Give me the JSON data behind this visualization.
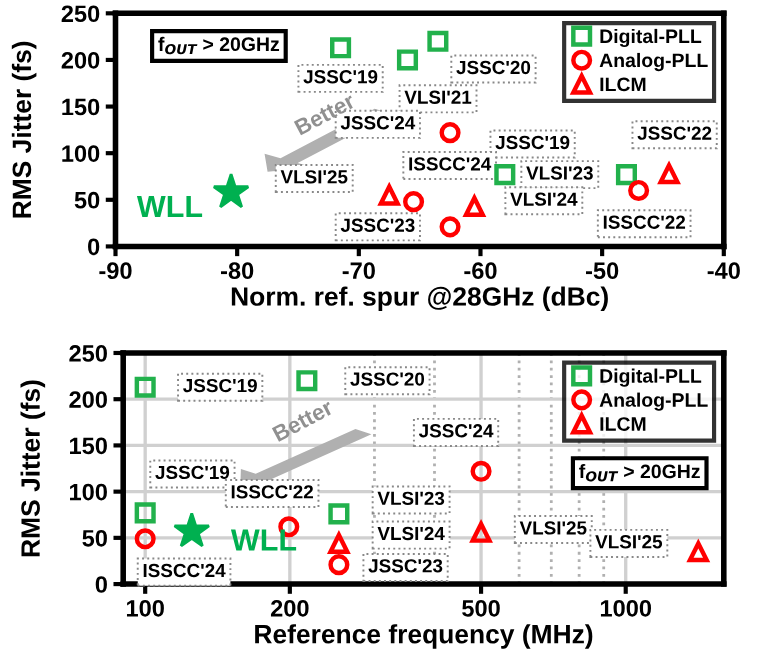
{
  "chart_data": [
    {
      "type": "scatter",
      "xlabel": "Norm. ref. spur @28GHz (dBc)",
      "ylabel": "RMS Jitter (fs)",
      "xlim": [
        -90,
        -40
      ],
      "xticks": [
        -90,
        -80,
        -70,
        -60,
        -50,
        -40
      ],
      "ylim": [
        0,
        250
      ],
      "yticks": [
        0,
        50,
        100,
        150,
        200,
        250
      ],
      "grid": false,
      "legend": "top right",
      "series": [
        {
          "name": "Digital-PLL",
          "color": "#22b14c",
          "marker": "square",
          "x": [
            -71.5,
            -66,
            -63.5,
            -58,
            -48
          ],
          "values": [
            213,
            200,
            220,
            77,
            77
          ]
        },
        {
          "name": "Analog-PLL",
          "color": "#ff0000",
          "marker": "circle",
          "x": [
            -62.5,
            -65.5,
            -62.5,
            -47
          ],
          "values": [
            122,
            48,
            21,
            60
          ]
        },
        {
          "name": "ILCM",
          "color": "#ff0000",
          "marker": "triangle",
          "x": [
            -67.5,
            -60.5,
            -44.5
          ],
          "values": [
            55,
            43,
            78
          ]
        },
        {
          "name": "WLL",
          "color": "#00b050",
          "marker": "star",
          "x": [
            -80.5
          ],
          "values": [
            58
          ]
        }
      ],
      "annotations": [
        {
          "text": "JSSC'19",
          "x": -71.5,
          "y": 213
        },
        {
          "text": "VLSI'21",
          "x": -66,
          "y": 200
        },
        {
          "text": "JSSC'20",
          "x": -63.5,
          "y": 220
        },
        {
          "text": "JSSC'19",
          "x": -58,
          "y": 77
        },
        {
          "text": "VLSI'23",
          "x": -48,
          "y": 77
        },
        {
          "text": "JSSC'24",
          "x": -62.5,
          "y": 122
        },
        {
          "text": "ISSCC'24",
          "x": -65.5,
          "y": 48
        },
        {
          "text": "JSSC'23",
          "x": -62.5,
          "y": 21
        },
        {
          "text": "ISSCC'22",
          "x": -47,
          "y": 60
        },
        {
          "text": "VLSI'25",
          "x": -67.5,
          "y": 55
        },
        {
          "text": "VLSI'24",
          "x": -60.5,
          "y": 43
        },
        {
          "text": "JSSC'22",
          "x": -44.5,
          "y": 78
        },
        "f$_{OUT}$ > 20GHz",
        "Better"
      ]
    },
    {
      "type": "scatter",
      "xlabel": "Reference frequency (MHz)",
      "ylabel": "RMS Jitter (fs)",
      "log": "x",
      "xlim": [
        90,
        1600
      ],
      "xticks": [
        100,
        200,
        500,
        1000
      ],
      "ylim": [
        0,
        250
      ],
      "yticks": [
        0,
        50,
        100,
        150,
        200,
        250
      ],
      "grid": true,
      "legend": "top right",
      "series": [
        {
          "name": "Digital-PLL",
          "color": "#22b14c",
          "marker": "square",
          "x": [
            100,
            217,
            100,
            253
          ],
          "values": [
            213,
            220,
            77,
            76
          ]
        },
        {
          "name": "Analog-PLL",
          "color": "#ff0000",
          "marker": "circle",
          "x": [
            100,
            199,
            253,
            500
          ],
          "values": [
            49,
            62,
            21,
            122
          ]
        },
        {
          "name": "ILCM",
          "color": "#ff0000",
          "marker": "triangle",
          "x": [
            253,
            500,
            1416
          ],
          "values": [
            44,
            56,
            35
          ]
        },
        {
          "name": "WLL",
          "color": "#00b050",
          "marker": "star",
          "x": [
            125
          ],
          "values": [
            57
          ]
        }
      ],
      "annotations": [
        {
          "text": "JSSC'19",
          "x": 100,
          "y": 213
        },
        {
          "text": "JSSC'20",
          "x": 217,
          "y": 220
        },
        {
          "text": "JSSC'19",
          "x": 100,
          "y": 77
        },
        {
          "text": "VLSI'23",
          "x": 253,
          "y": 76
        },
        {
          "text": "ISSCC'24",
          "x": 100,
          "y": 49
        },
        {
          "text": "ISSCC'22",
          "x": 199,
          "y": 62
        },
        {
          "text": "JSSC'23",
          "x": 253,
          "y": 21
        },
        {
          "text": "JSSC'24",
          "x": 500,
          "y": 122
        },
        {
          "text": "VLSI'24",
          "x": 253,
          "y": 44
        },
        {
          "text": "VLSI'25",
          "x": 500,
          "y": 56
        },
        {
          "text": "VLSI'25",
          "x": 1416,
          "y": 35
        },
        "f$_{OUT}$ > 20GHz",
        "Better"
      ]
    }
  ]
}
